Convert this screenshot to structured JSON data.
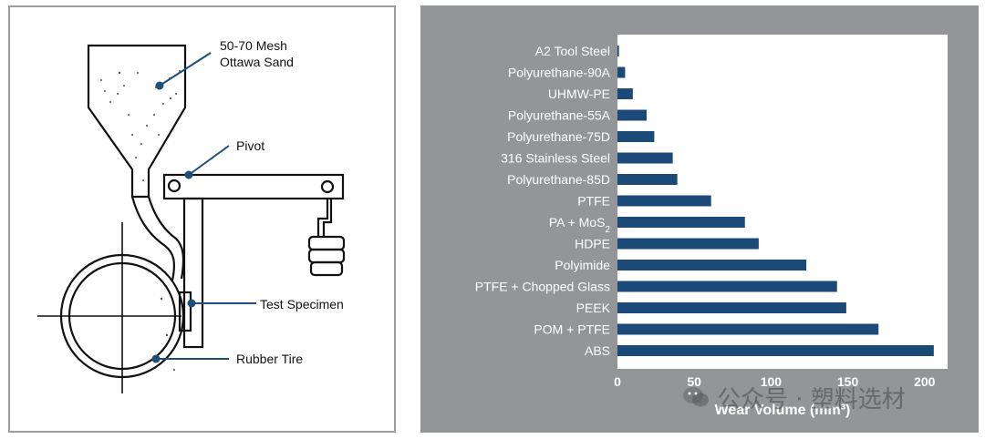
{
  "diagram": {
    "labels": {
      "sand_line1": "50-70 Mesh",
      "sand_line2": "Ottawa Sand",
      "pivot": "Pivot",
      "specimen": "Test Specimen",
      "tire": "Rubber Tire"
    },
    "leader_color": "#1f4e79"
  },
  "chart_data": {
    "type": "bar",
    "orientation": "horizontal",
    "categories": [
      "A2 Tool Steel",
      "Polyurethane-90A",
      "UHMW-PE",
      "Polyurethane-55A",
      "Polyurethane-75D",
      "316 Stainless Steel",
      "Polyurethane-85D",
      "PTFE",
      "PA + MoS2",
      "HDPE",
      "Polyimide",
      "PTFE + Chopped Glass",
      "PEEK",
      "POM + PTFE",
      "ABS"
    ],
    "values": [
      1,
      5,
      10,
      19,
      24,
      36,
      39,
      61,
      83,
      92,
      123,
      143,
      149,
      170,
      206
    ],
    "xlabel": "Wear Volume (mm³)",
    "xlim": [
      0,
      215
    ],
    "xticks": [
      "0",
      "50",
      "100",
      "150",
      "200"
    ],
    "grid": false,
    "bar_color": "#1b4a78",
    "plot_background": "#ffffff",
    "panel_background": "#939598"
  },
  "watermark": {
    "text": "公众号 · 塑料选材"
  }
}
